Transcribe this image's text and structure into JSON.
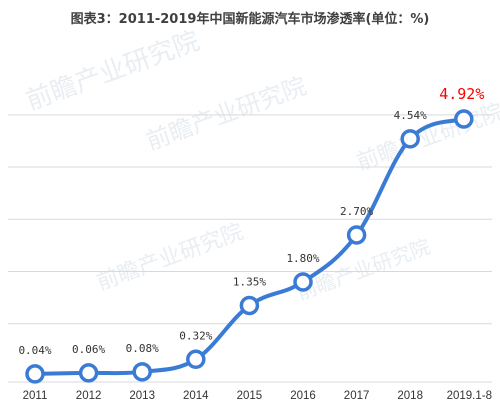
{
  "title": "图表3：2011-2019年中国新能源汽车市场渗透率(单位：%)",
  "watermark": "前瞻产业研究院",
  "chart_data": {
    "type": "line",
    "title": "图表3：2011-2019年中国新能源汽车市场渗透率(单位：%)",
    "categories": [
      "2011",
      "2012",
      "2013",
      "2014",
      "2015",
      "2016",
      "2017",
      "2018",
      "2019.1-8"
    ],
    "series": [
      {
        "values": [
          0.04,
          0.06,
          0.08,
          0.32,
          1.35,
          1.8,
          2.7,
          4.54,
          4.92
        ],
        "labels": [
          "0.04%",
          "0.06%",
          "0.08%",
          "0.32%",
          "1.35%",
          "1.80%",
          "2.70%",
          "4.54%",
          "4.92%"
        ],
        "color": "#3a7bd5"
      }
    ],
    "highlight_label_index": 8,
    "highlight_color": "#ff0000",
    "ylim": [
      0,
      5.2
    ],
    "gridlines": [
      1,
      2,
      3,
      4,
      5
    ],
    "grid": true,
    "xlabel": "",
    "ylabel": ""
  }
}
